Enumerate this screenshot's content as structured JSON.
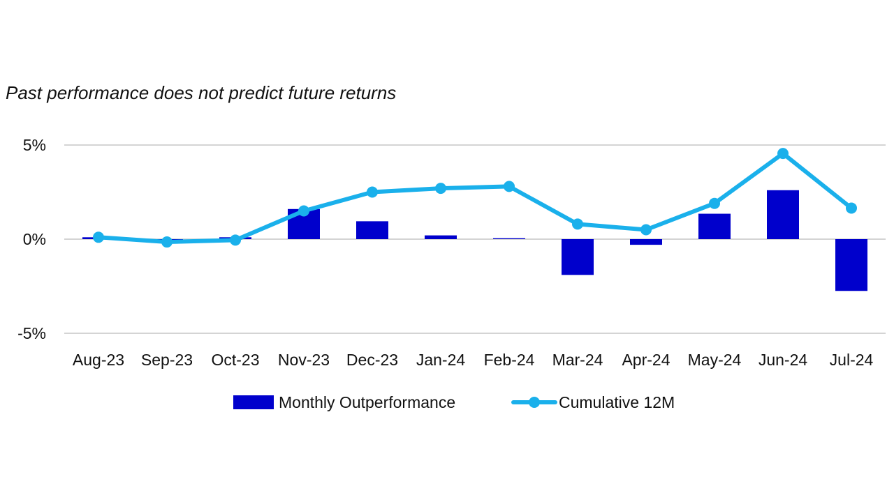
{
  "chart_data": {
    "type": "bar",
    "title": "",
    "subtitle": "Past performance does not predict future returns",
    "xlabel": "",
    "ylabel": "",
    "categories": [
      "Aug-23",
      "Sep-23",
      "Oct-23",
      "Nov-23",
      "Dec-23",
      "Jan-24",
      "Feb-24",
      "Mar-24",
      "Apr-24",
      "May-24",
      "Jun-24",
      "Jul-24"
    ],
    "y_ticks": [
      {
        "value": 5,
        "label": "5%"
      },
      {
        "value": 0,
        "label": "0%"
      },
      {
        "value": -5,
        "label": "-5%"
      }
    ],
    "ylim": [
      -5,
      5
    ],
    "grid": "horizontal",
    "legend_position": "bottom",
    "series": [
      {
        "name": "Monthly Outperformance",
        "type": "bar",
        "color": "#0000CC",
        "values": [
          0.1,
          -0.2,
          0.1,
          1.6,
          0.95,
          0.2,
          0.05,
          -1.9,
          -0.3,
          1.35,
          2.6,
          -2.75
        ]
      },
      {
        "name": "Cumulative 12M",
        "type": "line",
        "color": "#1AB0EB",
        "values": [
          0.1,
          -0.15,
          -0.05,
          1.5,
          2.5,
          2.7,
          2.8,
          0.8,
          0.5,
          1.9,
          4.55,
          1.65
        ]
      }
    ]
  }
}
